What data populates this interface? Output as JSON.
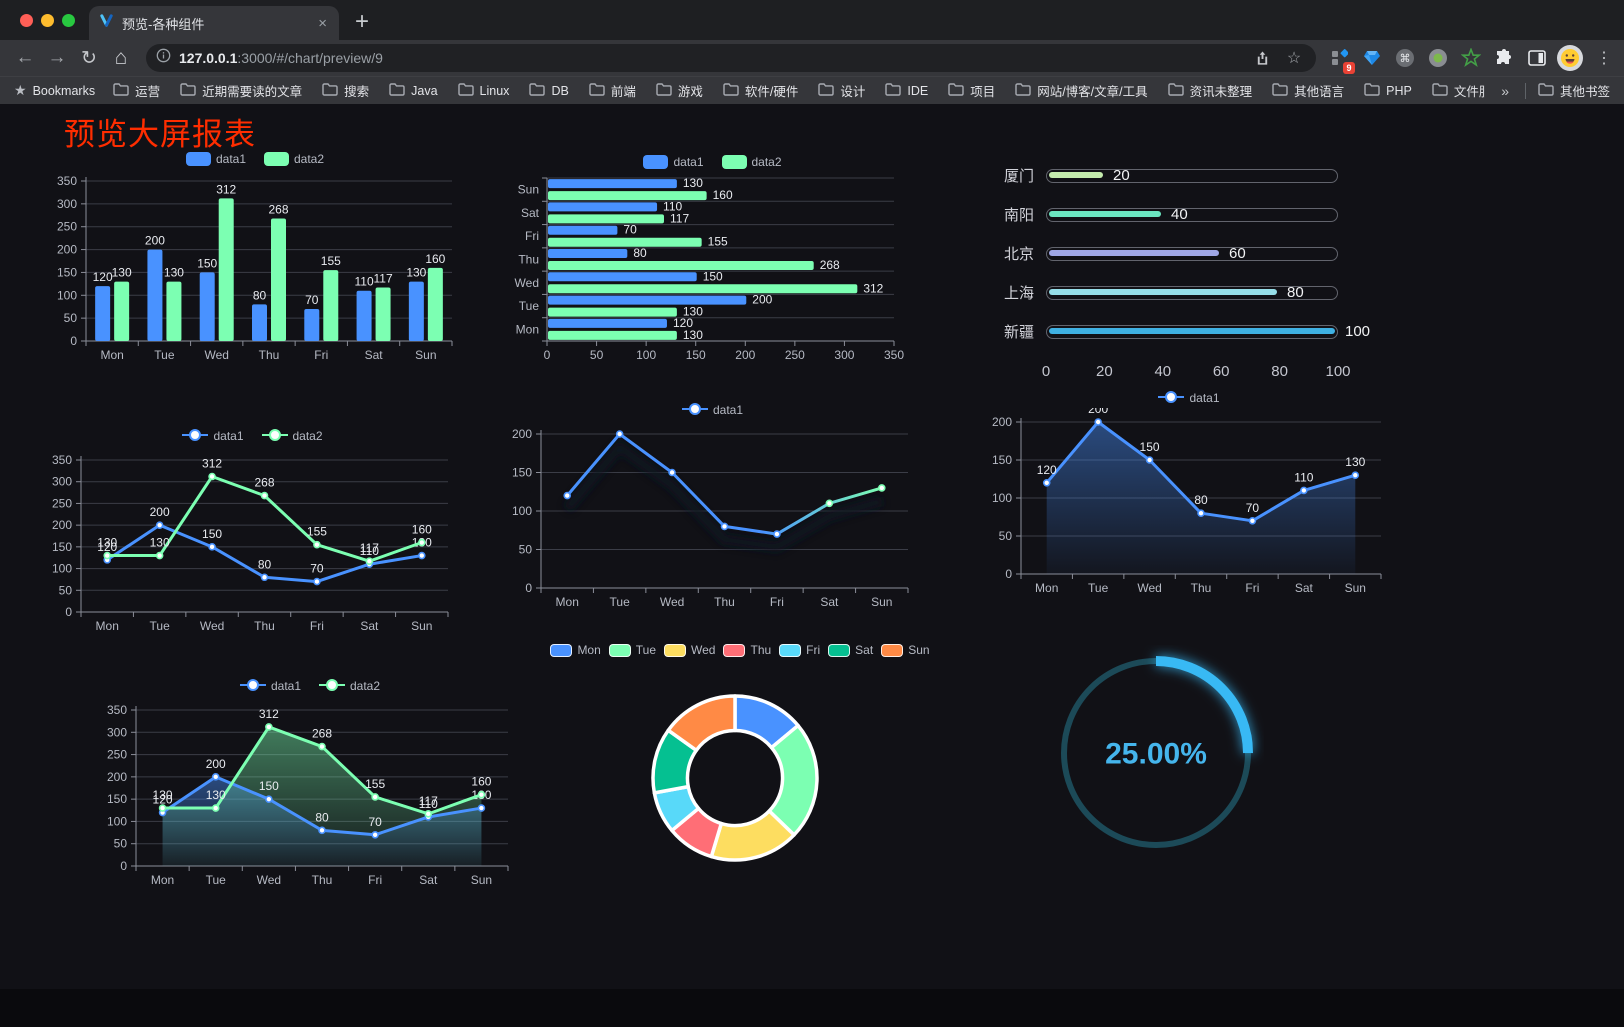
{
  "browser": {
    "tab_title": "预览-各种组件",
    "url_host": "127.0.0.1",
    "url_rest": ":3000/#/chart/preview/9",
    "extension_badge": "9",
    "bookmarks_label": "Bookmarks",
    "bookmarks": [
      "运营",
      "近期需要读的文章",
      "搜索",
      "Java",
      "Linux",
      "DB",
      "前端",
      "游戏",
      "软件/硬件",
      "设计",
      "IDE",
      "项目",
      "网站/博客/文章/工具",
      "资讯未整理",
      "其他语言",
      "PHP",
      "文件服务器"
    ],
    "bookmarks_overflow": "»",
    "other_bookmarks": "其他书签"
  },
  "page": {
    "title": "预览大屏报表",
    "title_color": "#ff2d00"
  },
  "chart_data": [
    {
      "id": "bar-vertical",
      "type": "grouped_bar",
      "categories": [
        "Mon",
        "Tue",
        "Wed",
        "Thu",
        "Fri",
        "Sat",
        "Sun"
      ],
      "series": [
        {
          "name": "data1",
          "color": "#4992ff",
          "values": [
            120,
            200,
            150,
            80,
            70,
            110,
            130
          ]
        },
        {
          "name": "data2",
          "color": "#7cffb2",
          "values": [
            130,
            130,
            312,
            268,
            155,
            117,
            160
          ]
        }
      ],
      "ylim": [
        0,
        350
      ],
      "yticks": [
        0,
        50,
        100,
        150,
        200,
        250,
        300,
        350
      ],
      "legend_style": "rect",
      "value_labels": true,
      "grid": true,
      "legend_position": "top"
    },
    {
      "id": "bar-horizontal",
      "type": "grouped_bar_h",
      "categories": [
        "Mon",
        "Tue",
        "Wed",
        "Thu",
        "Fri",
        "Sat",
        "Sun"
      ],
      "series": [
        {
          "name": "data1",
          "color": "#4992ff",
          "values": [
            120,
            200,
            150,
            80,
            70,
            110,
            130
          ]
        },
        {
          "name": "data2",
          "color": "#7cffb2",
          "values": [
            130,
            130,
            312,
            268,
            155,
            117,
            160
          ]
        }
      ],
      "xlim": [
        0,
        350
      ],
      "xticks": [
        0,
        50,
        100,
        150,
        200,
        250,
        300,
        350
      ],
      "legend_style": "rect",
      "value_labels": true,
      "grid": true,
      "legend_position": "top"
    },
    {
      "id": "city-progress",
      "type": "progress_bars",
      "max": 100,
      "items": [
        {
          "label": "厦门",
          "value": 20,
          "color": "#c4ebad"
        },
        {
          "label": "南阳",
          "value": 40,
          "color": "#6be6c1"
        },
        {
          "label": "北京",
          "value": 60,
          "color": "#a0a7e6"
        },
        {
          "label": "上海",
          "value": 80,
          "color": "#96dee8"
        },
        {
          "label": "新疆",
          "value": 100,
          "color": "#3fb1e3"
        }
      ],
      "xticks": [
        0,
        20,
        40,
        60,
        80,
        100
      ]
    },
    {
      "id": "line-two-series",
      "type": "line",
      "categories": [
        "Mon",
        "Tue",
        "Wed",
        "Thu",
        "Fri",
        "Sat",
        "Sun"
      ],
      "series": [
        {
          "name": "data1",
          "color": "#4992ff",
          "values": [
            120,
            200,
            150,
            80,
            70,
            110,
            130
          ]
        },
        {
          "name": "data2",
          "color": "#7cffb2",
          "values": [
            130,
            130,
            312,
            268,
            155,
            117,
            160
          ]
        }
      ],
      "ylim": [
        0,
        350
      ],
      "yticks": [
        0,
        50,
        100,
        150,
        200,
        250,
        300,
        350
      ],
      "legend_style": "line",
      "value_labels": true,
      "grid": true,
      "legend_position": "top"
    },
    {
      "id": "line-gradient",
      "type": "line",
      "categories": [
        "Mon",
        "Tue",
        "Wed",
        "Thu",
        "Fri",
        "Sat",
        "Sun"
      ],
      "series": [
        {
          "name": "data1",
          "color": "#4992ff",
          "color_gradient": [
            "#4992ff",
            "#7cffb2"
          ],
          "values": [
            120,
            200,
            150,
            80,
            70,
            110,
            130
          ]
        }
      ],
      "ylim": [
        0,
        200
      ],
      "yticks": [
        0,
        50,
        100,
        150,
        200
      ],
      "legend_style": "line",
      "value_labels": false,
      "shadow": true,
      "grid": true,
      "legend_position": "top"
    },
    {
      "id": "area-single",
      "type": "line",
      "categories": [
        "Mon",
        "Tue",
        "Wed",
        "Thu",
        "Fri",
        "Sat",
        "Sun"
      ],
      "series": [
        {
          "name": "data1",
          "color": "#4992ff",
          "area": true,
          "values": [
            120,
            200,
            150,
            80,
            70,
            110,
            130
          ]
        }
      ],
      "ylim": [
        0,
        200
      ],
      "yticks": [
        0,
        50,
        100,
        150,
        200
      ],
      "legend_style": "line",
      "value_labels": true,
      "grid": true,
      "legend_position": "top"
    },
    {
      "id": "area-two-series",
      "type": "line",
      "categories": [
        "Mon",
        "Tue",
        "Wed",
        "Thu",
        "Fri",
        "Sat",
        "Sun"
      ],
      "series": [
        {
          "name": "data1",
          "color": "#4992ff",
          "area": true,
          "values": [
            120,
            200,
            150,
            80,
            70,
            110,
            130
          ]
        },
        {
          "name": "data2",
          "color": "#7cffb2",
          "area": true,
          "values": [
            130,
            130,
            312,
            268,
            155,
            117,
            160
          ]
        }
      ],
      "ylim": [
        0,
        350
      ],
      "yticks": [
        0,
        50,
        100,
        150,
        200,
        250,
        300,
        350
      ],
      "legend_style": "line",
      "value_labels": true,
      "grid": true,
      "legend_position": "top"
    },
    {
      "id": "donut",
      "type": "pie",
      "inner_radius_ratio": 0.58,
      "categories": [
        "Mon",
        "Tue",
        "Wed",
        "Thu",
        "Fri",
        "Sat",
        "Sun"
      ],
      "values": [
        120,
        200,
        150,
        80,
        70,
        110,
        130
      ],
      "colors": [
        "#4992ff",
        "#7cffb2",
        "#fddd60",
        "#ff6e76",
        "#58d9f9",
        "#05c091",
        "#ff8a45"
      ],
      "legend_position": "top"
    },
    {
      "id": "gauge",
      "type": "gauge",
      "value": 25,
      "display": "25.00%",
      "min": 0,
      "max": 100,
      "color": "#38b9f4",
      "track_color": "#1c4a58",
      "text_color": "#45b5ec"
    }
  ]
}
